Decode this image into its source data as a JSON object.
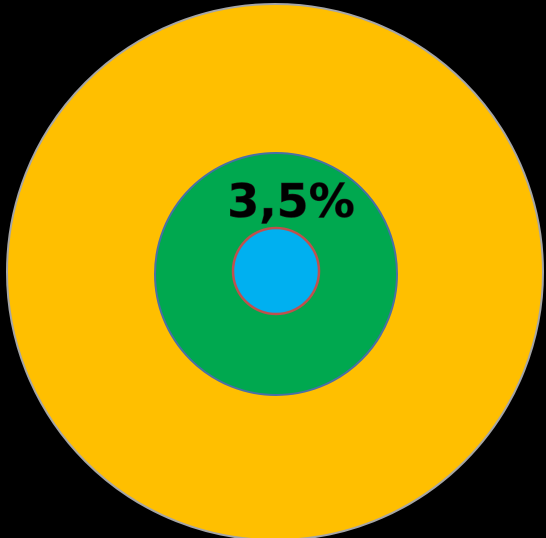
{
  "diagram": {
    "label": "3,5%",
    "rings": [
      {
        "name": "outer-ring",
        "fill": "#FFBF00",
        "stroke": "#A6A6A6"
      },
      {
        "name": "middle-circle",
        "fill": "#00A84F",
        "stroke": "#4A6FA5"
      },
      {
        "name": "inner-circle",
        "fill": "#00B0F0",
        "stroke": "#C0504D"
      }
    ]
  }
}
